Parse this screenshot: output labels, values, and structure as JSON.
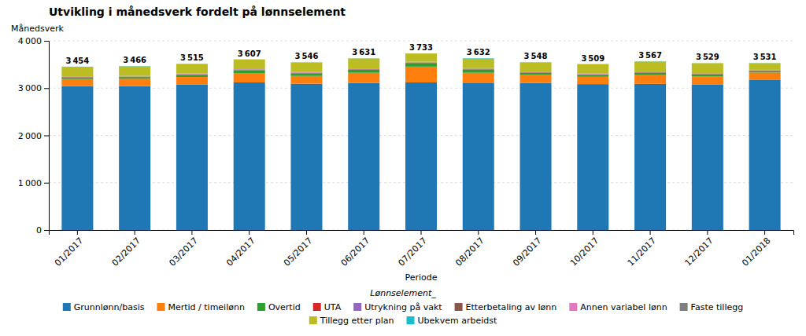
{
  "chart_data": {
    "type": "bar",
    "stacked": true,
    "title": "Utvikling i månedsverk fordelt på lønnselement",
    "ylabel": "Månedsverk",
    "xlabel": "Periode",
    "legend_title": "Lønnselement_",
    "legend": "bottom",
    "grid": true,
    "categories": [
      "01/2017",
      "02/2017",
      "03/2017",
      "04/2017",
      "05/2017",
      "06/2017",
      "07/2017",
      "08/2017",
      "09/2017",
      "10/2017",
      "11/2017",
      "12/2017",
      "01/2018"
    ],
    "series": [
      {
        "name": "Grunnlønn/basis",
        "values": [
          3043,
          3043,
          3072,
          3120,
          3093,
          3110,
          3120,
          3115,
          3108,
          3085,
          3090,
          3080,
          3180
        ]
      },
      {
        "name": "Mertid / timeilønn",
        "values": [
          150,
          155,
          165,
          200,
          165,
          215,
          335,
          210,
          170,
          155,
          185,
          165,
          150
        ]
      },
      {
        "name": "Overtid",
        "values": [
          30,
          35,
          45,
          55,
          55,
          65,
          75,
          70,
          45,
          40,
          50,
          45,
          30
        ]
      },
      {
        "name": "UTA",
        "values": [
          5,
          5,
          5,
          5,
          5,
          5,
          5,
          5,
          5,
          5,
          5,
          5,
          5
        ]
      },
      {
        "name": "Utrykning på vakt",
        "values": [
          3,
          3,
          3,
          3,
          3,
          3,
          3,
          3,
          3,
          3,
          3,
          3,
          3
        ]
      },
      {
        "name": "Etterbetaling av lønn",
        "values": [
          5,
          5,
          5,
          5,
          5,
          5,
          5,
          5,
          5,
          5,
          5,
          5,
          5
        ]
      },
      {
        "name": "Annen variabel lønn",
        "values": [
          10,
          10,
          10,
          10,
          10,
          10,
          10,
          10,
          10,
          10,
          10,
          10,
          10
        ]
      },
      {
        "name": "Faste tillegg",
        "values": [
          5,
          5,
          5,
          5,
          5,
          5,
          5,
          5,
          5,
          5,
          5,
          5,
          5
        ]
      },
      {
        "name": "Tillegg etter plan",
        "values": [
          200,
          200,
          200,
          200,
          200,
          210,
          175,
          200,
          195,
          200,
          210,
          210,
          140
        ]
      },
      {
        "name": "Ubekvem arbeidst",
        "values": [
          3,
          5,
          5,
          4,
          5,
          3,
          0,
          9,
          2,
          1,
          4,
          1,
          3
        ]
      }
    ],
    "totals": [
      3454,
      3466,
      3515,
      3607,
      3546,
      3631,
      3733,
      3632,
      3548,
      3509,
      3567,
      3529,
      3531
    ],
    "total_labels": [
      "3 454",
      "3 466",
      "3 515",
      "3 607",
      "3 546",
      "3 631",
      "3 733",
      "3 632",
      "3 548",
      "3 509",
      "3 567",
      "3 529",
      "3 531"
    ],
    "ylim": [
      0,
      4000
    ],
    "yticks": [
      0,
      {
        "value": 1000,
        "label": "1 000"
      },
      {
        "value": 2000,
        "label": "2 000"
      },
      {
        "value": 3000,
        "label": "3 000"
      },
      {
        "value": 4000,
        "label": "4 000"
      }
    ]
  }
}
